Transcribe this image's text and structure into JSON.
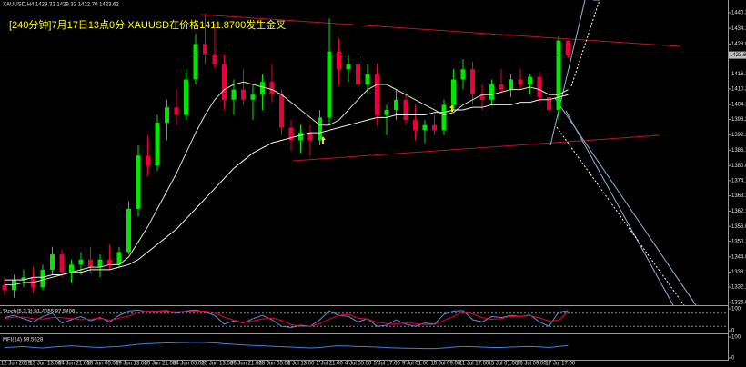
{
  "chart_data": {
    "type": "candlestick",
    "header": "XAUUSD,H4 1429.32 1429.32 1422.70 1423.62",
    "annotation": "[240分钟]7月17日13点0分 XAUUSD在价格1411.8700发生金叉",
    "categories": [
      "12 Jun 2019",
      null,
      null,
      "13 Jun 13:00",
      null,
      null,
      "14 Jun 21:00",
      null,
      null,
      "18 Jun 05:00",
      null,
      null,
      "19 Jun 13:00",
      null,
      null,
      "20 Jun 21:00",
      null,
      null,
      "24 Jun 05:00",
      null,
      null,
      "25 Jun 13:00",
      null,
      null,
      "26 Jun 21:00",
      null,
      null,
      "28 Jun 05:00",
      null,
      null,
      "1 Jul 13:00",
      null,
      null,
      "2 Jul 21:00",
      null,
      null,
      "4 Jul 05:00",
      null,
      null,
      "5 Jul 17:00",
      null,
      null,
      "9 Jul 01:00",
      null,
      null,
      "10 Jul 09:00",
      null,
      null,
      "11 Jul 17:00",
      null,
      null,
      "15 Jul 01:00",
      null,
      null,
      "16 Jul 09:00",
      null,
      null,
      "17 Jul 17:00",
      null,
      null
    ],
    "open": [
      1333,
      1331,
      1335,
      1336,
      1332,
      1339,
      1345,
      1338,
      1341,
      1343,
      1340,
      1343,
      1341,
      1346,
      1363,
      1384,
      1380,
      1397,
      1403,
      1400,
      1414,
      1428,
      1424,
      1420,
      1406,
      1410,
      1406,
      1408,
      1413,
      1408,
      1395,
      1390,
      1393,
      1390,
      1399,
      1425,
      1418,
      1420,
      1412,
      1416,
      1400,
      1402,
      1406,
      1398,
      1394,
      1396,
      1394,
      1404,
      1414,
      1418,
      1408,
      1406,
      1412,
      1410,
      1414,
      1412,
      1415,
      1407,
      1402,
      1429.32
    ],
    "high": [
      1336,
      1337,
      1339,
      1340,
      1341,
      1348,
      1347,
      1343,
      1346,
      1348,
      1345,
      1349,
      1348,
      1366,
      1388,
      1392,
      1400,
      1406,
      1410,
      1418,
      1432,
      1440,
      1436,
      1424,
      1414,
      1418,
      1412,
      1416,
      1420,
      1410,
      1398,
      1396,
      1396,
      1402,
      1438,
      1430,
      1424,
      1423,
      1420,
      1420,
      1404,
      1410,
      1408,
      1404,
      1398,
      1400,
      1406,
      1418,
      1422,
      1421,
      1412,
      1414,
      1418,
      1416,
      1418,
      1416,
      1417,
      1410,
      1431,
      1429.32
    ],
    "low": [
      1329,
      1328,
      1332,
      1330,
      1331,
      1337,
      1336,
      1334,
      1337,
      1338,
      1336,
      1339,
      1340,
      1345,
      1360,
      1376,
      1378,
      1390,
      1396,
      1398,
      1412,
      1420,
      1418,
      1402,
      1400,
      1404,
      1398,
      1402,
      1405,
      1392,
      1386,
      1385,
      1384,
      1388,
      1396,
      1412,
      1413,
      1410,
      1408,
      1396,
      1392,
      1398,
      1396,
      1390,
      1389,
      1392,
      1392,
      1402,
      1410,
      1404,
      1402,
      1404,
      1408,
      1407,
      1410,
      1408,
      1405,
      1400,
      1398,
      1422.7
    ],
    "close": [
      1331,
      1335,
      1336,
      1332,
      1339,
      1345,
      1338,
      1341,
      1343,
      1340,
      1343,
      1341,
      1346,
      1363,
      1384,
      1380,
      1397,
      1403,
      1400,
      1414,
      1428,
      1424,
      1420,
      1406,
      1410,
      1406,
      1408,
      1413,
      1408,
      1395,
      1390,
      1393,
      1390,
      1399,
      1425,
      1418,
      1420,
      1412,
      1416,
      1400,
      1402,
      1406,
      1398,
      1394,
      1396,
      1394,
      1404,
      1414,
      1418,
      1408,
      1406,
      1412,
      1410,
      1414,
      1412,
      1415,
      1407,
      1402,
      1429.32,
      1423.62
    ],
    "up_color": "#00e600",
    "down_color": "#e8003c",
    "ylim": [
      1325,
      1444.6
    ],
    "yticks": [
      {
        "value": 1440.3,
        "label": "1440.30"
      },
      1434.15,
      {
        "value": 1428,
        "label": "1428.00"
      },
      1416.15,
      1410.25,
      {
        "value": 1404.1,
        "label": "1404.10"
      },
      {
        "value": 1398.2,
        "label": "1398.20"
      },
      {
        "value": 1392.1,
        "label": "1392.10"
      },
      1386.15,
      1380.05,
      {
        "value": 1374.1,
        "label": "1374.10"
      },
      1368.15,
      {
        "value": 1362.1,
        "label": "1362.10"
      },
      1356.05,
      1350.15,
      1344.05,
      {
        "value": 1338.1,
        "label": "1338.10"
      },
      1332.15,
      1326.05
    ],
    "current_price": 1423.62,
    "overlays": [
      {
        "color": "#e8e4b0",
        "values": [
          1333,
          1333,
          1334,
          1334,
          1335,
          1336,
          1337,
          1338,
          1339,
          1340,
          1340,
          1341,
          1341,
          1344,
          1350,
          1356,
          1363,
          1370,
          1377,
          1385,
          1393,
          1400,
          1406,
          1410,
          1412,
          1413,
          1412,
          1411,
          1410,
          1408,
          1405,
          1402,
          1399,
          1396,
          1396,
          1398,
          1402,
          1406,
          1410,
          1412,
          1412,
          1410,
          1408,
          1406,
          1404,
          1402,
          1400,
          1401,
          1404,
          1406,
          1408,
          1408,
          1409,
          1410,
          1410,
          1411,
          1410,
          1408,
          1408,
          1410
        ]
      },
      {
        "color": "#f2f2f2",
        "values": [
          1335,
          1335,
          1335,
          1336,
          1336,
          1337,
          1337,
          1338,
          1338,
          1339,
          1339,
          1339,
          1340,
          1341,
          1343,
          1346,
          1349,
          1352,
          1355,
          1359,
          1363,
          1367,
          1371,
          1375,
          1379,
          1382,
          1385,
          1387,
          1389,
          1390,
          1391,
          1392,
          1393,
          1393,
          1394,
          1395,
          1396,
          1397,
          1398,
          1399,
          1399,
          1400,
          1400,
          1400,
          1400,
          1401,
          1401,
          1402,
          1402,
          1403,
          1403,
          1404,
          1404,
          1404,
          1405,
          1405,
          1406,
          1406,
          1407,
          1408
        ]
      }
    ],
    "panels": [
      {
        "title": "Stoch(5,3,3) 91.4055 87.5406",
        "ylim": [
          0,
          100
        ],
        "yticks": [
          0,
          100
        ],
        "levels": [
          20,
          80
        ],
        "series": [
          {
            "color": "#5a8fd8",
            "values": [
              60,
              70,
              55,
              40,
              65,
              80,
              35,
              50,
              65,
              45,
              60,
              40,
              70,
              90,
              95,
              85,
              90,
              92,
              80,
              90,
              95,
              85,
              70,
              30,
              45,
              35,
              55,
              70,
              50,
              20,
              15,
              25,
              20,
              50,
              90,
              70,
              65,
              40,
              55,
              20,
              25,
              50,
              30,
              20,
              35,
              30,
              75,
              90,
              92,
              50,
              40,
              65,
              60,
              70,
              65,
              72,
              40,
              20,
              85,
              91.4055
            ]
          },
          {
            "color": "#e8003c",
            "values": [
              55,
              62,
              62,
              55,
              53,
              60,
              60,
              55,
              50,
              53,
              57,
              48,
              57,
              67,
              85,
              90,
              90,
              89,
              87,
              87,
              89,
              90,
              83,
              62,
              48,
              37,
              45,
              53,
              58,
              47,
              28,
              20,
              20,
              32,
              53,
              70,
              75,
              58,
              53,
              38,
              33,
              32,
              35,
              33,
              28,
              28,
              47,
              65,
              86,
              77,
              60,
              52,
              55,
              65,
              65,
              69,
              59,
              44,
              48,
              87.5406
            ]
          }
        ]
      },
      {
        "title": "MFI(14) 59.5628",
        "ylim": [
          0,
          100
        ],
        "yticks": [
          0,
          100
        ],
        "levels": [],
        "series": [
          {
            "color": "#3f7fe0",
            "values": [
              50,
              52,
              55,
              50,
              48,
              52,
              55,
              58,
              55,
              52,
              50,
              53,
              55,
              60,
              65,
              68,
              70,
              72,
              73,
              74,
              75,
              74,
              72,
              68,
              65,
              62,
              60,
              58,
              56,
              54,
              52,
              50,
              48,
              50,
              55,
              58,
              57,
              55,
              54,
              52,
              50,
              48,
              47,
              46,
              45,
              45,
              48,
              52,
              55,
              54,
              52,
              50,
              50,
              52,
              54,
              55,
              53,
              50,
              55,
              59.5628
            ]
          }
        ]
      }
    ]
  }
}
